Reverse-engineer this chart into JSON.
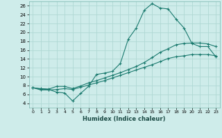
{
  "xlabel": "Humidex (Indice chaleur)",
  "bg_color": "#ceecea",
  "grid_color": "#b0d8d4",
  "line_color": "#1a7a6e",
  "xlim": [
    -0.5,
    23.5
  ],
  "ylim": [
    3,
    27
  ],
  "yticks": [
    4,
    6,
    8,
    10,
    12,
    14,
    16,
    18,
    20,
    22,
    24,
    26
  ],
  "xticks": [
    0,
    1,
    2,
    3,
    4,
    5,
    6,
    7,
    8,
    9,
    10,
    11,
    12,
    13,
    14,
    15,
    16,
    17,
    18,
    19,
    20,
    21,
    22,
    23
  ],
  "series1_x": [
    0,
    1,
    2,
    3,
    4,
    5,
    6,
    7,
    8,
    9,
    10,
    11,
    12,
    13,
    14,
    15,
    16,
    17,
    18,
    19,
    20,
    21,
    22,
    23
  ],
  "series1_y": [
    7.5,
    7.2,
    7.1,
    6.5,
    6.3,
    4.5,
    6.2,
    7.8,
    10.5,
    10.8,
    11.2,
    13.0,
    18.5,
    21.0,
    25.0,
    26.5,
    25.5,
    25.3,
    23.0,
    21.0,
    17.5,
    16.8,
    16.8,
    14.5
  ],
  "series2_x": [
    0,
    1,
    2,
    3,
    4,
    5,
    6,
    7,
    8,
    9,
    10,
    11,
    12,
    13,
    14,
    15,
    16,
    17,
    18,
    19,
    20,
    21,
    22,
    23
  ],
  "series2_y": [
    7.5,
    7.3,
    7.2,
    7.8,
    7.8,
    7.3,
    7.9,
    8.6,
    9.1,
    9.7,
    10.3,
    10.9,
    11.6,
    12.3,
    13.2,
    14.3,
    15.5,
    16.3,
    17.2,
    17.5,
    17.6,
    17.6,
    17.4,
    16.8
  ],
  "series3_x": [
    0,
    1,
    2,
    3,
    4,
    5,
    6,
    7,
    8,
    9,
    10,
    11,
    12,
    13,
    14,
    15,
    16,
    17,
    18,
    19,
    20,
    21,
    22,
    23
  ],
  "series3_y": [
    7.5,
    7.0,
    7.0,
    7.1,
    7.3,
    7.1,
    7.6,
    8.1,
    8.6,
    9.1,
    9.7,
    10.3,
    10.9,
    11.5,
    12.1,
    12.7,
    13.4,
    14.1,
    14.5,
    14.7,
    15.0,
    15.0,
    15.0,
    14.7
  ]
}
